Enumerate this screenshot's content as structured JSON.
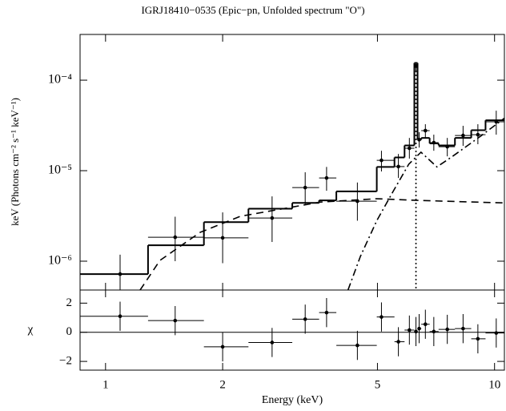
{
  "chart_data": [
    {
      "type": "spectrum",
      "title": "IGRJ18410−0535 (Epic−pn, Unfolded spectrum \"O\")",
      "ylabel": "keV (Photons cm⁻² s⁻¹ keV⁻¹)",
      "yscale": "log",
      "ylim": [
        4.8e-07,
        0.00032
      ],
      "yticks": [
        {
          "value": 1e-06,
          "label": "10⁻⁶"
        },
        {
          "value": 1e-05,
          "label": "10⁻⁵"
        },
        {
          "value": 0.0001,
          "label": "10⁻⁴"
        }
      ],
      "series": [
        {
          "kind": "data",
          "color": "#000000",
          "x": [
            1.09,
            1.51,
            2.0,
            2.68,
            3.26,
            3.7,
            4.44,
            5.12,
            5.66,
            6.04,
            6.28,
            6.4,
            6.64,
            6.98,
            7.56,
            8.3,
            9.06,
            10.1
          ],
          "x_lo": [
            0.859,
            1.286,
            1.79,
            2.33,
            3.02,
            3.54,
            3.92,
            4.98,
            5.53,
            5.87,
            6.22,
            6.34,
            6.48,
            6.81,
            7.18,
            7.91,
            8.71,
            9.48
          ],
          "x_hi": [
            1.286,
            1.79,
            2.33,
            3.02,
            3.54,
            3.92,
            4.98,
            5.53,
            5.87,
            6.22,
            6.34,
            6.48,
            6.81,
            7.18,
            7.91,
            8.71,
            9.48,
            10.6
          ],
          "values": [
            7.2e-07,
            1.84e-06,
            1.81e-06,
            3e-06,
            6.5e-06,
            8.3e-06,
            4.6e-06,
            1.3e-05,
            1.11e-05,
            1.77e-05,
            0.000144,
            2.2e-05,
            2.77e-05,
            2.04e-05,
            1.84e-05,
            2.45e-05,
            2.5e-05,
            3.47e-05
          ],
          "y_lo": [
            4e-07,
            1e-06,
            9.5e-07,
            1.63e-06,
            4.25e-06,
            6e-06,
            2.8e-06,
            9.8e-06,
            8.3e-06,
            1.36e-05,
            0.000122,
            1.8e-05,
            2.3e-05,
            1.66e-05,
            1.44e-05,
            1.88e-05,
            1.96e-05,
            2.5e-05
          ],
          "y_hi": [
            1.18e-06,
            3.1e-06,
            3.46e-06,
            5.2e-06,
            9.6e-06,
            1.1e-05,
            7.4e-06,
            1.66e-05,
            1.53e-05,
            2.3e-05,
            0.000156,
            2.66e-05,
            3.26e-05,
            2.5e-05,
            2.3e-05,
            3.13e-05,
            3.26e-05,
            4.6e-05
          ]
        },
        {
          "kind": "step",
          "color": "#000000",
          "bins": [
            0.859,
            1.286,
            1.79,
            2.33,
            3.02,
            3.54,
            3.92,
            4.98,
            5.53,
            5.87,
            6.22,
            6.34,
            6.48,
            6.81,
            7.18,
            7.91,
            8.71,
            9.48,
            10.6
          ],
          "values": [
            7.2e-07,
            1.5e-06,
            2.7e-06,
            3.8e-06,
            4.4e-06,
            4.7e-06,
            5.9e-06,
            1.1e-05,
            1.4e-05,
            1.9e-05,
            0.000155,
            2.2e-05,
            2.3e-05,
            2e-05,
            1.9e-05,
            2.3e-05,
            2.8e-05,
            3.6e-05
          ]
        },
        {
          "kind": "line",
          "style": "dashed",
          "color": "#000000",
          "x": [
            1.227,
            1.38,
            1.75,
            2.22,
            3.57,
            4.98,
            6.31,
            10.6
          ],
          "values": [
            4.8e-07,
            1.02e-06,
            2.08e-06,
            3.13e-06,
            4.5e-06,
            4.9e-06,
            4.7e-06,
            4.4e-06
          ]
        },
        {
          "kind": "line",
          "style": "dashdot",
          "color": "#000000",
          "x": [
            4.2,
            4.52,
            4.98,
            5.47,
            6.02,
            6.47,
            7.11,
            7.8,
            9.2,
            10.6
          ],
          "values": [
            4.8e-07,
            1.13e-06,
            2.8e-06,
            5.77e-06,
            1.18e-05,
            1.6e-05,
            1.1e-05,
            1.44e-05,
            2.4e-05,
            3.8e-05
          ]
        },
        {
          "kind": "line",
          "style": "dotted",
          "color": "#000000",
          "x": [
            6.28,
            6.28
          ],
          "values": [
            3e-07,
            0.00015
          ]
        }
      ]
    },
    {
      "type": "residuals",
      "xlabel": "Energy (keV)",
      "ylabel": "χ",
      "xscale": "log",
      "xlim": [
        0.86,
        10.6
      ],
      "xticks": [
        1,
        2,
        5,
        10
      ],
      "ylim": [
        -2.6,
        2.9
      ],
      "yticks": [
        {
          "value": -2,
          "label": "−2"
        },
        0,
        2
      ],
      "reference_line": 0,
      "series": [
        {
          "kind": "data",
          "color": "#000000",
          "x": [
            1.09,
            1.51,
            2.0,
            2.68,
            3.26,
            3.7,
            4.44,
            5.12,
            5.66,
            6.04,
            6.28,
            6.4,
            6.64,
            6.98,
            7.56,
            8.3,
            9.06,
            10.1
          ],
          "x_lo": [
            0.859,
            1.286,
            1.79,
            2.33,
            3.02,
            3.54,
            3.92,
            4.98,
            5.53,
            5.87,
            6.22,
            6.34,
            6.48,
            6.81,
            7.18,
            7.91,
            8.71,
            9.48
          ],
          "x_hi": [
            1.286,
            1.79,
            2.33,
            3.02,
            3.54,
            3.92,
            4.98,
            5.53,
            5.87,
            6.22,
            6.34,
            6.48,
            6.81,
            7.18,
            7.91,
            8.71,
            9.48,
            10.6
          ],
          "values": [
            1.1,
            0.8,
            -1.0,
            -0.7,
            0.9,
            1.35,
            -0.9,
            1.05,
            -0.65,
            0.15,
            0.05,
            0.25,
            0.55,
            0.05,
            0.2,
            0.25,
            -0.45,
            -0.05
          ],
          "y_err": [
            1,
            1,
            1,
            1,
            1,
            1,
            1,
            1,
            1,
            1,
            1,
            1,
            1,
            1,
            1,
            1,
            1,
            1
          ]
        }
      ]
    }
  ]
}
